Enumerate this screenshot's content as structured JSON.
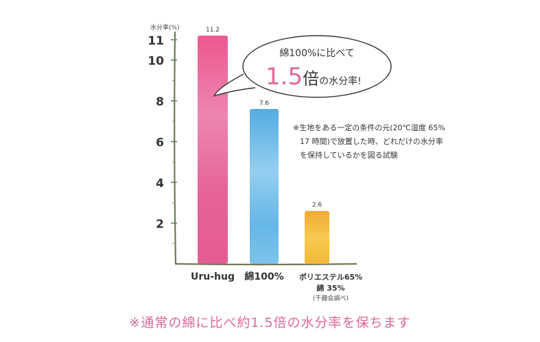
{
  "chart_data": {
    "type": "bar",
    "ylabel": "水分率(%)",
    "ylim": [
      0,
      11.2
    ],
    "yticks": [
      2,
      4,
      6,
      8,
      10,
      11
    ],
    "categories": [
      "Uru-hug",
      "綿100%",
      "ポリエステル65%\n綿 35%"
    ],
    "values": [
      11.2,
      7.6,
      2.6
    ],
    "value_labels": [
      "11.2",
      "7.6",
      "2.6"
    ],
    "category_note": "(千趣会調べ)",
    "colors": [
      "#e3548c",
      "#5fb6e3",
      "#f3b52e"
    ]
  },
  "callout": {
    "line1": "綿100%に比べて",
    "ratio": "1.5",
    "line2_suffix_big": "倍",
    "line2_rest": "の水分率!"
  },
  "note": {
    "lines": [
      "※生地をある一定の条件の元(20℃湿度 65%",
      "17 時間)で放置した時、どれだけの水分率",
      "を保持しているかを図る試験"
    ]
  },
  "footer": "※通常の綿に比べ約1.5倍の水分率を保ちます"
}
